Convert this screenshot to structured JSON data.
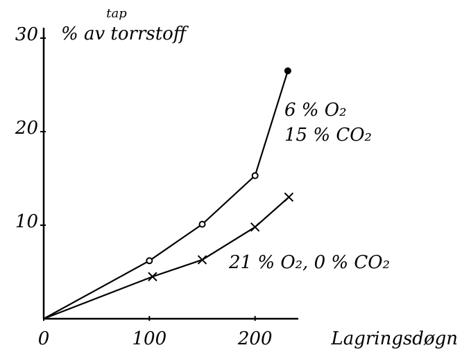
{
  "chart_data": {
    "type": "line",
    "y_label_insert": "tap",
    "y_label": "% av torrstoff",
    "x_label": "Lagringsdøgn",
    "xlim": [
      0,
      235
    ],
    "xticks": [
      0,
      100,
      200
    ],
    "ylim": [
      0,
      30
    ],
    "yticks": [
      10,
      20,
      30
    ],
    "series": [
      {
        "name": [
          "6 % O₂",
          "15 % CO₂"
        ],
        "color": "#000000",
        "marker": "circle",
        "x": [
          0,
          100,
          150,
          200,
          231
        ],
        "values": [
          0,
          6.2,
          10.1,
          15.3,
          26.5
        ]
      },
      {
        "name": [
          "21 % O₂, 0 % CO₂"
        ],
        "color": "#000000",
        "marker": "cross",
        "x": [
          0,
          103,
          150,
          200,
          232
        ],
        "values": [
          0,
          4.5,
          6.3,
          9.8,
          13
        ]
      }
    ]
  }
}
